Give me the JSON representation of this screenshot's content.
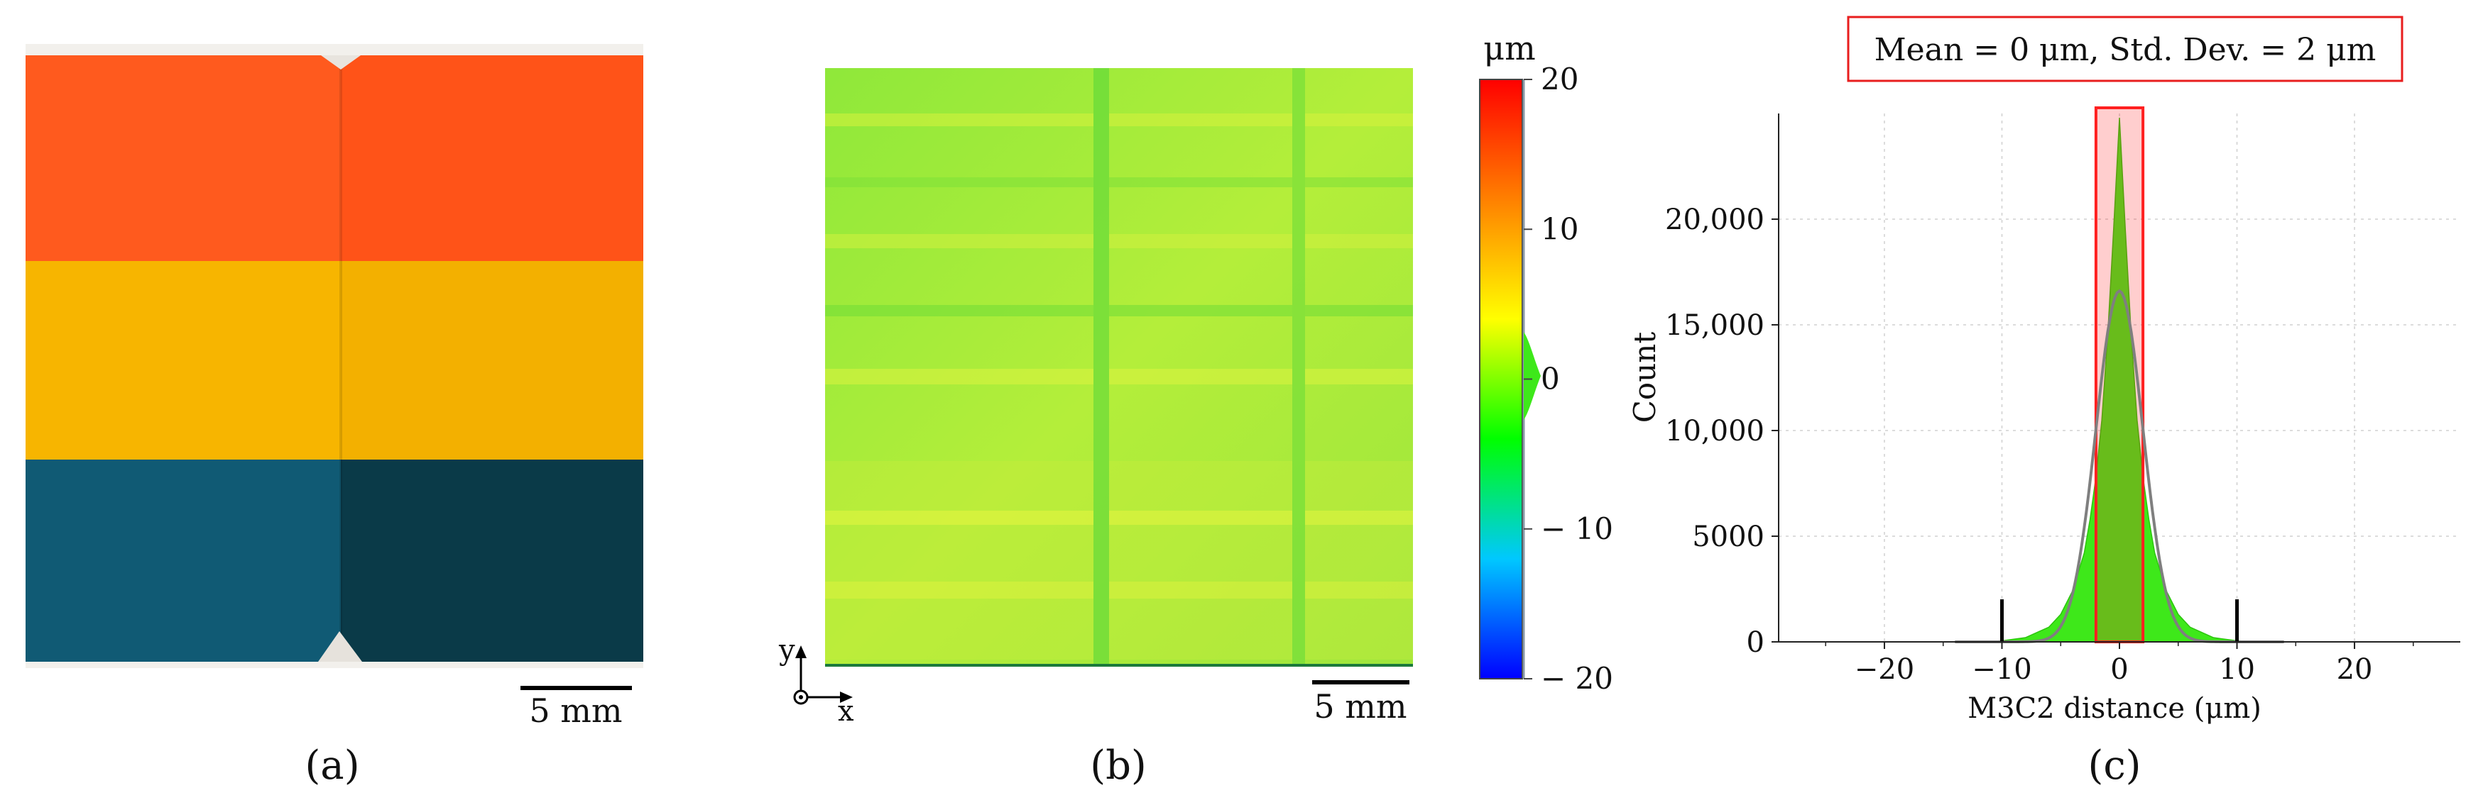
{
  "panels": {
    "a": {
      "caption": "(a)",
      "scale_bar_label": "5 mm",
      "stripe_colors": [
        "#ff5a1e",
        "#f7b500",
        "#105a74",
        "#0a3a48"
      ]
    },
    "b": {
      "caption": "(b)",
      "scale_bar_label": "5 mm",
      "axis_y_label": "y",
      "axis_x_label": "x",
      "colorbar": {
        "unit": "μm",
        "min": -20,
        "max": 20,
        "ticks": [
          20,
          10,
          0,
          -10,
          -20
        ],
        "tick_labels": [
          "20",
          "10",
          "0",
          "− 10",
          "− 20"
        ],
        "colors": [
          "#0000ff",
          "#00c8ff",
          "#00ff00",
          "#ffff00",
          "#ff8000",
          "#ff0000"
        ]
      }
    },
    "c": {
      "caption": "(c)",
      "legend_box": "Mean = 0 μm, Std. Dev. = 2 μm",
      "highlight_color": "#ff2020",
      "fill_color": "#3ee81a",
      "fit_color": "#7f7f7f"
    }
  },
  "chart_data": {
    "type": "histogram",
    "title": "Mean = 0 μm, Std. Dev. = 2 μm",
    "xlabel": "M3C2 distance (μm)",
    "ylabel": "Count",
    "xlim": [
      -29,
      29
    ],
    "ylim": [
      0,
      25000
    ],
    "x_ticks": [
      -20,
      -10,
      0,
      10,
      20
    ],
    "x_tick_labels": [
      "−20",
      "−10",
      "0",
      "10",
      "20"
    ],
    "y_ticks": [
      0,
      5000,
      10000,
      15000,
      20000
    ],
    "y_tick_labels": [
      "0",
      "5000",
      "10,000",
      "15,000",
      "20,000"
    ],
    "grid": true,
    "histogram": {
      "x": [
        -12,
        -10,
        -8,
        -6,
        -5,
        -4,
        -3,
        -2.5,
        -2,
        -1.5,
        -1,
        -0.5,
        0,
        0.5,
        1,
        1.5,
        2,
        2.5,
        3,
        4,
        5,
        6,
        8,
        10,
        12
      ],
      "counts": [
        0,
        50,
        200,
        700,
        1300,
        2400,
        4200,
        5800,
        7800,
        10500,
        14500,
        19500,
        24800,
        19500,
        14500,
        10500,
        7800,
        5800,
        4200,
        2400,
        1300,
        700,
        200,
        50,
        0
      ]
    },
    "gaussian_fit": {
      "mean": 0,
      "std_dev": 2,
      "peak": 16600
    },
    "highlight_range": [
      -2,
      2
    ],
    "bound_markers": [
      -10,
      10
    ]
  }
}
